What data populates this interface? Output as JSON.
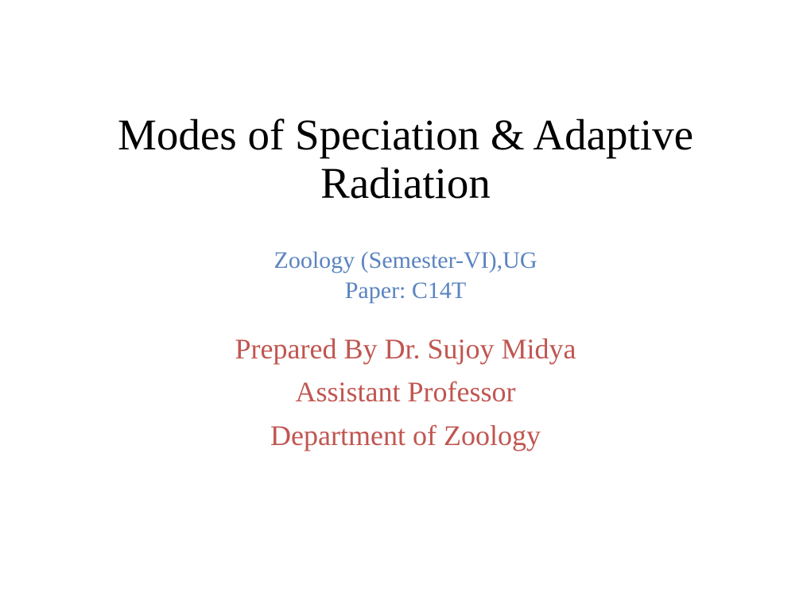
{
  "slide": {
    "title": "Modes of Speciation & Adaptive Radiation",
    "subtitle_line1": "Zoology (Semester-VI),UG",
    "subtitle_line2": "Paper: C14T",
    "author_line1": "Prepared By Dr. Sujoy Midya",
    "author_line2": "Assistant Professor",
    "author_line3": "Department of Zoology"
  },
  "styling": {
    "background_color": "#ffffff",
    "title_color": "#000000",
    "title_fontsize": 55,
    "subtitle_color": "#5b84bf",
    "subtitle_fontsize": 30,
    "author_color": "#c05651",
    "author_fontsize": 36,
    "font_family": "Times New Roman"
  }
}
